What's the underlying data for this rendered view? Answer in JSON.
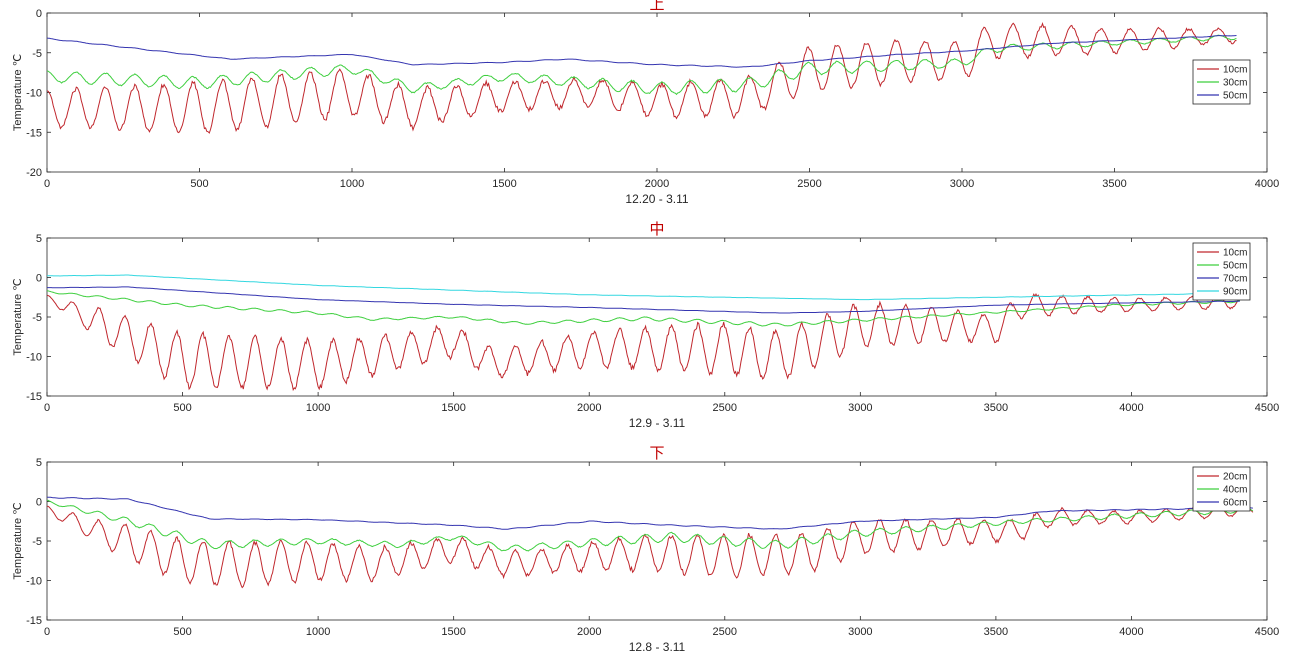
{
  "colors": {
    "10cm": "#c0272d",
    "20cm": "#c0272d",
    "30cm": "#3fcf3f",
    "40cm": "#3fcf3f",
    "50cm_top": "#3535b0",
    "50cm_mid": "#3fcf3f",
    "70cm": "#3535b0",
    "60cm": "#3535b0",
    "90cm": "#33d7e0",
    "axis": "#262626",
    "title": "#c00000"
  },
  "chart_data": [
    {
      "type": "line",
      "title": "上",
      "xlabel": "12.20 - 3.11",
      "ylabel": "Temperature ℃",
      "xlim": [
        0,
        4000
      ],
      "ylim": [
        -20,
        0
      ],
      "xticks": [
        "0",
        "500",
        "1000",
        "1500",
        "2000",
        "2500",
        "3000",
        "3500",
        "4000"
      ],
      "yticks": [
        "0",
        "-5",
        "-10",
        "-15",
        "-20"
      ],
      "legend": "top-right",
      "series": [
        {
          "name": "10cm",
          "color": "#c0272d",
          "data_end": 3900,
          "period": 96,
          "mean": [
            [
              0,
              -12
            ],
            [
              500,
              -12
            ],
            [
              1000,
              -10
            ],
            [
              1200,
              -12
            ],
            [
              1500,
              -10.5
            ],
            [
              1800,
              -10
            ],
            [
              2000,
              -11
            ],
            [
              2300,
              -10.5
            ],
            [
              2500,
              -7
            ],
            [
              2800,
              -6
            ],
            [
              3000,
              -6
            ],
            [
              3100,
              -3.5
            ],
            [
              3500,
              -3.5
            ],
            [
              3900,
              -2.8
            ]
          ],
          "amp": [
            [
              0,
              2.5
            ],
            [
              500,
              2.8
            ],
            [
              1000,
              3
            ],
            [
              1500,
              2.8
            ],
            [
              2000,
              2.8
            ],
            [
              2500,
              2.6
            ],
            [
              2800,
              2.4
            ],
            [
              3000,
              2.2
            ],
            [
              3500,
              2
            ],
            [
              3900,
              1.5
            ]
          ]
        },
        {
          "name": "30cm",
          "color": "#3fcf3f",
          "data_end": 3900,
          "period": 96,
          "mean": [
            [
              0,
              -8
            ],
            [
              500,
              -8.8
            ],
            [
              1000,
              -7
            ],
            [
              1200,
              -9.5
            ],
            [
              1500,
              -8
            ],
            [
              2000,
              -9.5
            ],
            [
              2300,
              -9
            ],
            [
              2500,
              -7
            ],
            [
              3000,
              -6.3
            ],
            [
              3100,
              -4.5
            ],
            [
              3900,
              -3
            ]
          ],
          "amp": [
            [
              0,
              0.6
            ],
            [
              1000,
              0.8
            ],
            [
              2000,
              0.8
            ],
            [
              3000,
              0.6
            ],
            [
              3900,
              0.4
            ]
          ]
        },
        {
          "name": "50cm",
          "color": "#3535b0",
          "data_end": 3900,
          "period": 96,
          "mean": [
            [
              0,
              -3.2
            ],
            [
              600,
              -5.8
            ],
            [
              1000,
              -5.2
            ],
            [
              1200,
              -6.5
            ],
            [
              1500,
              -6.2
            ],
            [
              1700,
              -5.8
            ],
            [
              2000,
              -6.5
            ],
            [
              2300,
              -6.8
            ],
            [
              2500,
              -6
            ],
            [
              2800,
              -5.2
            ],
            [
              3000,
              -4.8
            ],
            [
              3300,
              -3.8
            ],
            [
              3900,
              -2.8
            ]
          ],
          "amp": [
            [
              0,
              0.05
            ],
            [
              3900,
              0.05
            ]
          ]
        }
      ]
    },
    {
      "type": "line",
      "title": "中",
      "xlabel": "12.9 - 3.11",
      "ylabel": "Temperature ℃",
      "xlim": [
        0,
        4500
      ],
      "ylim": [
        -15,
        5
      ],
      "xticks": [
        "0",
        "500",
        "1000",
        "1500",
        "2000",
        "2500",
        "3000",
        "3500",
        "4000",
        "4500"
      ],
      "yticks": [
        "5",
        "0",
        "-5",
        "-10",
        "-15"
      ],
      "legend": "top-right",
      "series": [
        {
          "name": "10cm",
          "color": "#c0272d",
          "data_end": 4400,
          "period": 96,
          "mean": [
            [
              0,
              -2.5
            ],
            [
              200,
              -6
            ],
            [
              500,
              -10.5
            ],
            [
              1000,
              -11
            ],
            [
              1200,
              -10
            ],
            [
              1500,
              -8
            ],
            [
              1650,
              -11
            ],
            [
              2000,
              -9
            ],
            [
              2500,
              -9
            ],
            [
              2700,
              -10
            ],
            [
              3000,
              -6
            ],
            [
              3300,
              -6
            ],
            [
              3500,
              -6.5
            ],
            [
              3600,
              -3.5
            ],
            [
              4000,
              -3.5
            ],
            [
              4400,
              -3
            ]
          ],
          "amp": [
            [
              0,
              0.3
            ],
            [
              200,
              2
            ],
            [
              500,
              3
            ],
            [
              1500,
              3
            ],
            [
              2500,
              3
            ],
            [
              3000,
              2.5
            ],
            [
              3500,
              2.2
            ],
            [
              4000,
              1.3
            ],
            [
              4400,
              1
            ]
          ]
        },
        {
          "name": "50cm",
          "color": "#3fcf3f",
          "data_end": 4400,
          "period": 96,
          "mean": [
            [
              0,
              -1.8
            ],
            [
              500,
              -3.5
            ],
            [
              1000,
              -4.5
            ],
            [
              1200,
              -5.3
            ],
            [
              1500,
              -5
            ],
            [
              1750,
              -5.8
            ],
            [
              2200,
              -5.2
            ],
            [
              2700,
              -6
            ],
            [
              3300,
              -4.8
            ],
            [
              4000,
              -3.4
            ],
            [
              4400,
              -3
            ]
          ],
          "amp": [
            [
              0,
              0.1
            ],
            [
              1000,
              0.2
            ],
            [
              3000,
              0.2
            ],
            [
              4400,
              0.15
            ]
          ]
        },
        {
          "name": "70cm",
          "color": "#3535b0",
          "data_end": 4400,
          "period": 96,
          "mean": [
            [
              0,
              -1.3
            ],
            [
              300,
              -1.2
            ],
            [
              1000,
              -2.8
            ],
            [
              1500,
              -3.4
            ],
            [
              2000,
              -3.8
            ],
            [
              2700,
              -4.5
            ],
            [
              3000,
              -4.3
            ],
            [
              3500,
              -3.5
            ],
            [
              4000,
              -3.2
            ],
            [
              4400,
              -3
            ]
          ],
          "amp": [
            [
              0,
              0.02
            ],
            [
              4400,
              0.02
            ]
          ]
        },
        {
          "name": "90cm",
          "color": "#33d7e0",
          "data_end": 4400,
          "period": 96,
          "mean": [
            [
              0,
              0.2
            ],
            [
              300,
              0.3
            ],
            [
              1000,
              -1
            ],
            [
              2000,
              -2.2
            ],
            [
              3000,
              -2.8
            ],
            [
              4000,
              -2.2
            ],
            [
              4400,
              -2
            ]
          ],
          "amp": [
            [
              0,
              0.02
            ],
            [
              4400,
              0.02
            ]
          ]
        }
      ]
    },
    {
      "type": "line",
      "title": "下",
      "xlabel": "12.8 - 3.11",
      "ylabel": "Temperature ℃",
      "xlim": [
        0,
        4500
      ],
      "ylim": [
        -15,
        5
      ],
      "xticks": [
        "0",
        "500",
        "1000",
        "1500",
        "2000",
        "2500",
        "3000",
        "3500",
        "4000",
        "4500"
      ],
      "yticks": [
        "5",
        "0",
        "-5",
        "-10",
        "-15"
      ],
      "legend": "top-right",
      "series": [
        {
          "name": "20cm",
          "color": "#c0272d",
          "data_end": 4450,
          "period": 96,
          "mean": [
            [
              0,
              -1
            ],
            [
              200,
              -4
            ],
            [
              500,
              -7.5
            ],
            [
              700,
              -8
            ],
            [
              1000,
              -7.5
            ],
            [
              1200,
              -8
            ],
            [
              1500,
              -6
            ],
            [
              1700,
              -8
            ],
            [
              2000,
              -7
            ],
            [
              2200,
              -6.5
            ],
            [
              2500,
              -7
            ],
            [
              2800,
              -6.5
            ],
            [
              3000,
              -4.5
            ],
            [
              3600,
              -3.5
            ],
            [
              3700,
              -2
            ],
            [
              4000,
              -2
            ],
            [
              4450,
              -1
            ]
          ],
          "amp": [
            [
              0,
              0.5
            ],
            [
              300,
              2
            ],
            [
              600,
              2.5
            ],
            [
              1500,
              2.5
            ],
            [
              2500,
              2.5
            ],
            [
              3000,
              2
            ],
            [
              3600,
              1.8
            ],
            [
              4000,
              1.2
            ],
            [
              4450,
              0.8
            ]
          ]
        },
        {
          "name": "40cm",
          "color": "#3fcf3f",
          "data_end": 4450,
          "period": 96,
          "mean": [
            [
              0,
              0
            ],
            [
              300,
              -2.5
            ],
            [
              600,
              -5.5
            ],
            [
              1000,
              -5
            ],
            [
              1300,
              -5.5
            ],
            [
              1500,
              -4.5
            ],
            [
              1700,
              -6
            ],
            [
              2000,
              -5.2
            ],
            [
              2300,
              -4.5
            ],
            [
              2700,
              -5.5
            ],
            [
              3000,
              -4
            ],
            [
              3600,
              -2.5
            ],
            [
              4450,
              -1
            ]
          ],
          "amp": [
            [
              0,
              0.15
            ],
            [
              500,
              0.5
            ],
            [
              3000,
              0.5
            ],
            [
              4450,
              0.3
            ]
          ]
        },
        {
          "name": "60cm",
          "color": "#3535b0",
          "data_end": 4450,
          "period": 96,
          "mean": [
            [
              0,
              0.5
            ],
            [
              300,
              0.3
            ],
            [
              600,
              -2.2
            ],
            [
              1000,
              -2.3
            ],
            [
              1500,
              -3
            ],
            [
              1700,
              -3.5
            ],
            [
              2000,
              -2.5
            ],
            [
              2300,
              -3
            ],
            [
              2700,
              -3.5
            ],
            [
              3000,
              -2.5
            ],
            [
              3500,
              -2
            ],
            [
              3700,
              -1.2
            ],
            [
              4450,
              -0.8
            ]
          ],
          "amp": [
            [
              0,
              0.05
            ],
            [
              4450,
              0.05
            ]
          ]
        }
      ]
    }
  ]
}
